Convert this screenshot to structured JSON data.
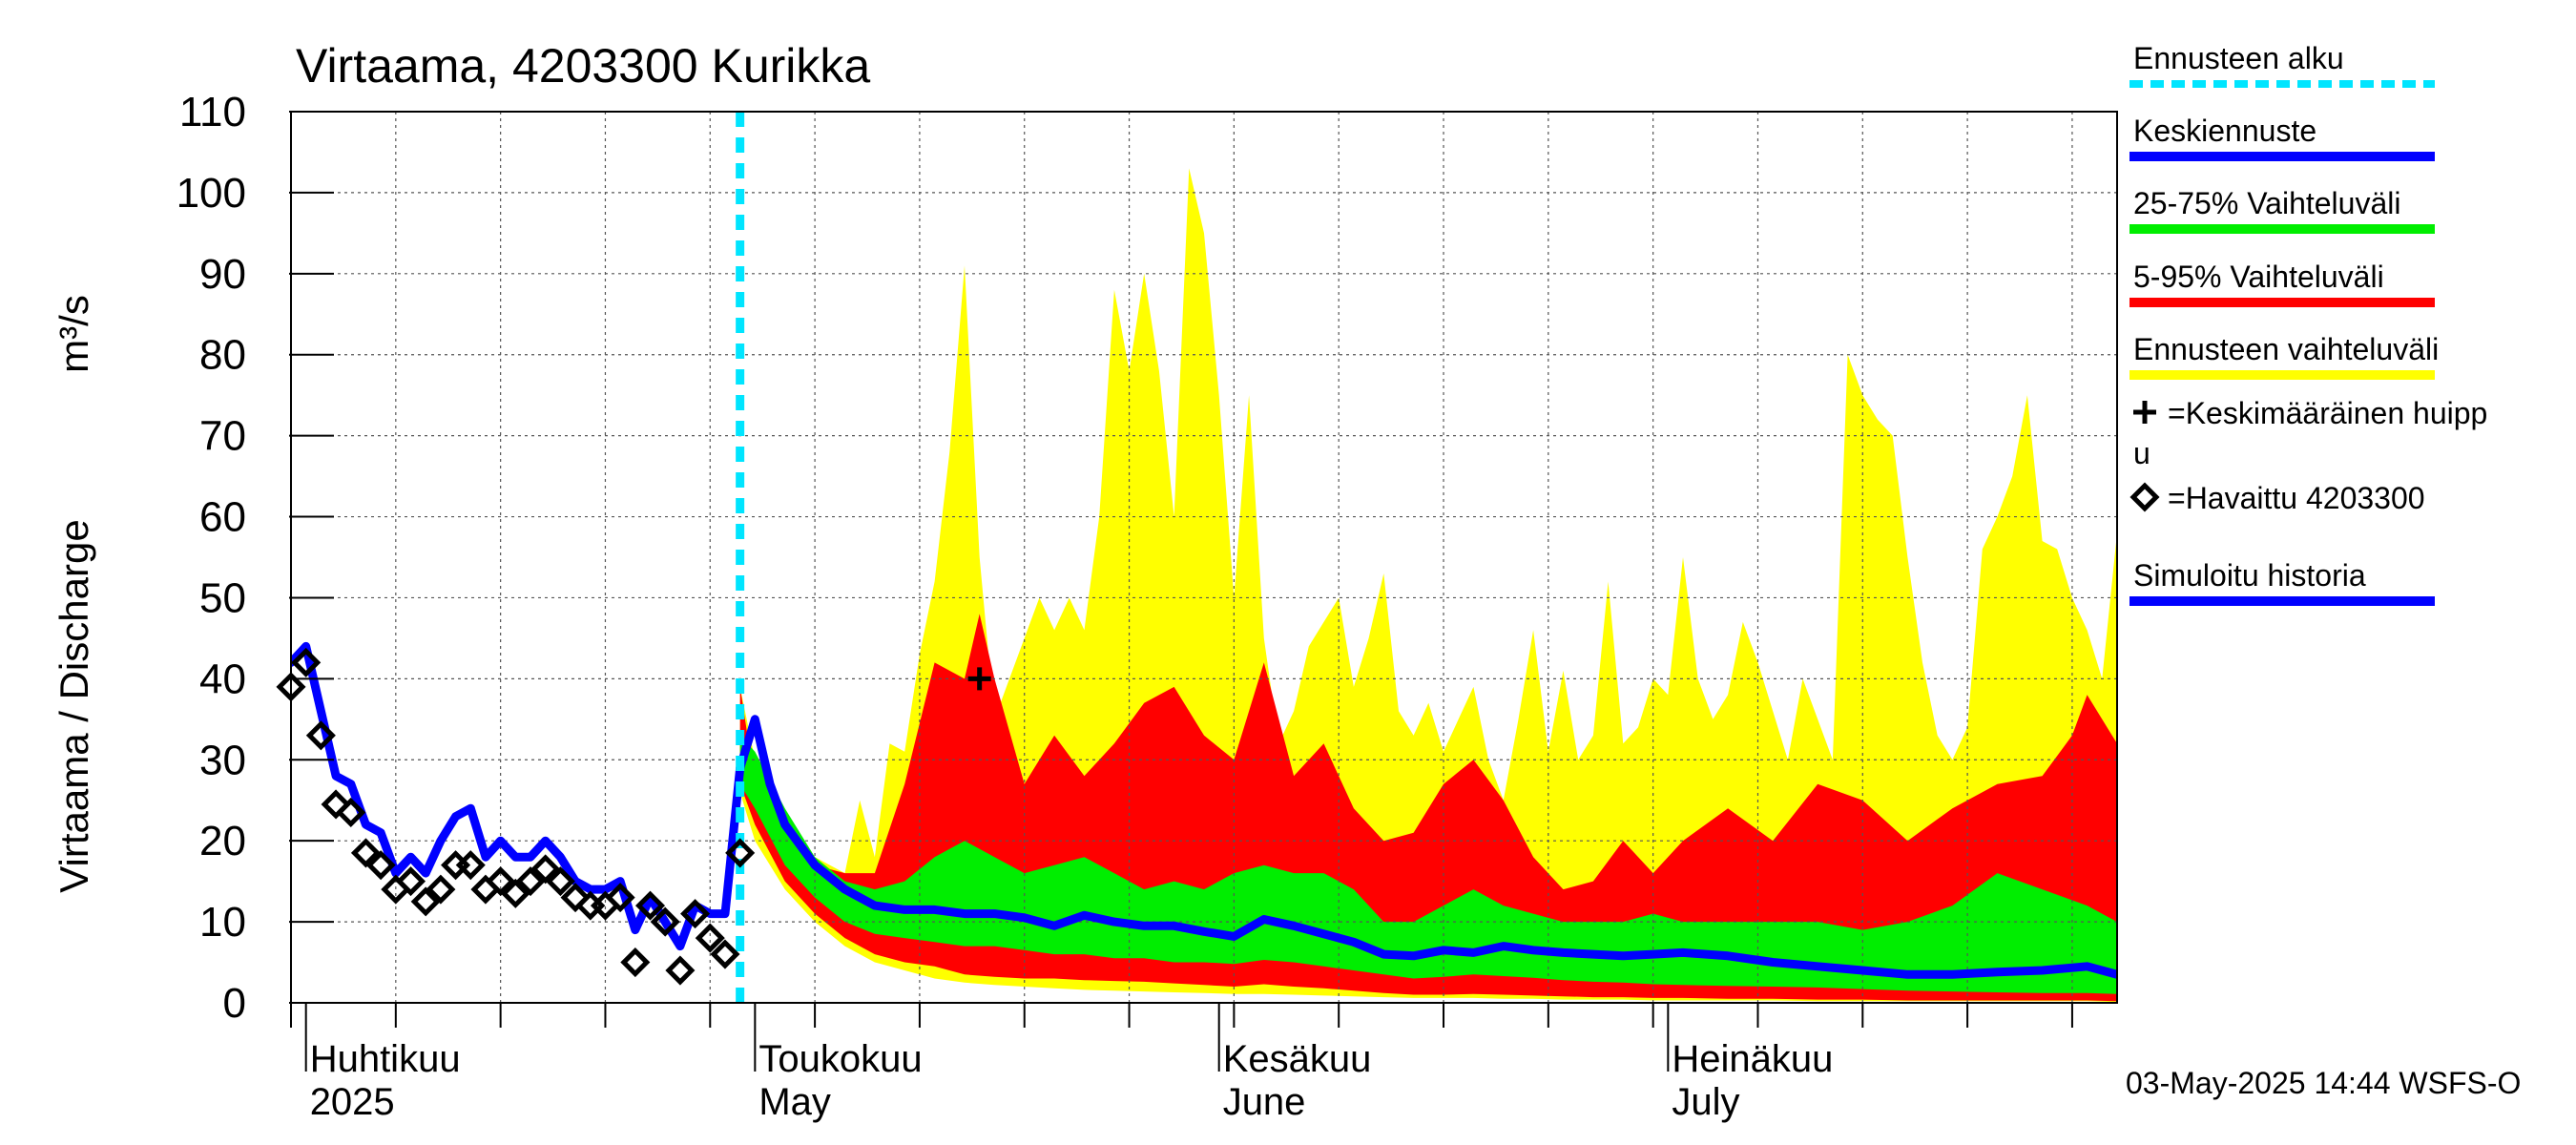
{
  "chart_data": {
    "type": "area",
    "title": "Virtaama, 4203300 Kurikka",
    "ylabel": "Virtaama / Discharge",
    "yunit": "m³/s",
    "ylim": [
      0,
      110
    ],
    "yticks": [
      0,
      10,
      20,
      30,
      40,
      50,
      60,
      70,
      80,
      90,
      100,
      110
    ],
    "xlim": [
      "2025-03-31",
      "2025-07-31"
    ],
    "months": [
      {
        "fi": "Huhtikuu",
        "en": "2025",
        "start": "2025-04-01"
      },
      {
        "fi": "Toukokuu",
        "en": "May",
        "start": "2025-05-01"
      },
      {
        "fi": "Kesäkuu",
        "en": "June",
        "start": "2025-06-01"
      },
      {
        "fi": "Heinäkuu",
        "en": "July",
        "start": "2025-07-01"
      }
    ],
    "forecast_start": "2025-04-30",
    "legend_placement": "right",
    "legend": [
      {
        "label": "Ennusteen alku",
        "color": "#00e5ff",
        "style": "dashed"
      },
      {
        "label": "Keskiennuste",
        "color": "#0000ff",
        "style": "line"
      },
      {
        "label": "25-75% Vaihteluväli",
        "color": "#00ee00",
        "style": "line"
      },
      {
        "label": "5-95% Vaihteluväli",
        "color": "#ff0000",
        "style": "line"
      },
      {
        "label": "Ennusteen vaihteluväli",
        "color": "#ffff00",
        "style": "line"
      },
      {
        "label": "=Keskimääräinen huipp",
        "label2": "u",
        "color": "#000000",
        "style": "plus"
      },
      {
        "label": "=Havaittu 4203300",
        "color": "#000000",
        "style": "diamond"
      },
      {
        "label": "Simuloitu historia",
        "color": "#0000ff",
        "style": "line"
      }
    ],
    "footer": "03-May-2025 14:44 WSFS-O",
    "colors": {
      "range_full": "#ffff00",
      "range_5_95": "#ff0000",
      "range_25_75": "#00ee00",
      "median": "#0000ff",
      "forecast_start": "#00e5ff",
      "grid": "#555555"
    },
    "series": [
      {
        "name": "Simuloitu historia",
        "x": [
          "2025-03-31",
          "2025-04-01",
          "2025-04-02",
          "2025-04-03",
          "2025-04-04",
          "2025-04-05",
          "2025-04-06",
          "2025-04-07",
          "2025-04-08",
          "2025-04-09",
          "2025-04-10",
          "2025-04-11",
          "2025-04-12",
          "2025-04-13",
          "2025-04-14",
          "2025-04-15",
          "2025-04-16",
          "2025-04-17",
          "2025-04-18",
          "2025-04-19",
          "2025-04-20",
          "2025-04-21",
          "2025-04-22",
          "2025-04-23",
          "2025-04-24",
          "2025-04-25",
          "2025-04-26",
          "2025-04-27",
          "2025-04-28",
          "2025-04-29",
          "2025-04-30"
        ],
        "values": [
          42,
          44,
          36,
          28,
          27,
          22,
          21,
          16,
          18,
          16,
          20,
          23,
          24,
          18,
          20,
          18,
          18,
          20,
          18,
          15,
          14,
          14,
          15,
          9,
          13,
          10,
          7,
          12,
          11,
          11,
          29
        ]
      },
      {
        "name": "Keskiennuste",
        "x": [
          "2025-04-30",
          "2025-05-01",
          "2025-05-02",
          "2025-05-03",
          "2025-05-05",
          "2025-05-07",
          "2025-05-09",
          "2025-05-11",
          "2025-05-13",
          "2025-05-15",
          "2025-05-17",
          "2025-05-19",
          "2025-05-21",
          "2025-05-23",
          "2025-05-25",
          "2025-05-27",
          "2025-05-29",
          "2025-05-31",
          "2025-06-02",
          "2025-06-04",
          "2025-06-06",
          "2025-06-08",
          "2025-06-10",
          "2025-06-12",
          "2025-06-14",
          "2025-06-16",
          "2025-06-18",
          "2025-06-20",
          "2025-06-22",
          "2025-06-24",
          "2025-06-26",
          "2025-06-28",
          "2025-06-30",
          "2025-07-02",
          "2025-07-05",
          "2025-07-08",
          "2025-07-11",
          "2025-07-14",
          "2025-07-17",
          "2025-07-20",
          "2025-07-23",
          "2025-07-26",
          "2025-07-29",
          "2025-07-31"
        ],
        "values": [
          29,
          35,
          27,
          22,
          17,
          14,
          12,
          11.5,
          11.5,
          11,
          11,
          10.5,
          9.5,
          10.8,
          10,
          9.5,
          9.5,
          8.8,
          8.2,
          10.3,
          9.5,
          8.5,
          7.5,
          6,
          5.8,
          6.5,
          6.2,
          7,
          6.5,
          6.2,
          6,
          5.8,
          6,
          6.2,
          5.8,
          5,
          4.5,
          4,
          3.5,
          3.5,
          3.8,
          4,
          4.5,
          3.5
        ]
      },
      {
        "name": "Ennusteen vaihteluväli max",
        "x": [
          "2025-04-30",
          "2025-05-01",
          "2025-05-03",
          "2025-05-05",
          "2025-05-07",
          "2025-05-08",
          "2025-05-09",
          "2025-05-10",
          "2025-05-11",
          "2025-05-12",
          "2025-05-13",
          "2025-05-14",
          "2025-05-15",
          "2025-05-16",
          "2025-05-17",
          "2025-05-18",
          "2025-05-19",
          "2025-05-20",
          "2025-05-21",
          "2025-05-22",
          "2025-05-23",
          "2025-05-24",
          "2025-05-25",
          "2025-05-26",
          "2025-05-27",
          "2025-05-28",
          "2025-05-29",
          "2025-05-30",
          "2025-05-31",
          "2025-06-01",
          "2025-06-02",
          "2025-06-03",
          "2025-06-04",
          "2025-06-05",
          "2025-06-06",
          "2025-06-07",
          "2025-06-08",
          "2025-06-09",
          "2025-06-10",
          "2025-06-11",
          "2025-06-12",
          "2025-06-13",
          "2025-06-14",
          "2025-06-15",
          "2025-06-16",
          "2025-06-17",
          "2025-06-18",
          "2025-06-19",
          "2025-06-20",
          "2025-06-21",
          "2025-06-22",
          "2025-06-23",
          "2025-06-24",
          "2025-06-25",
          "2025-06-26",
          "2025-06-27",
          "2025-06-28",
          "2025-06-29",
          "2025-06-30",
          "2025-07-01",
          "2025-07-02",
          "2025-07-03",
          "2025-07-04",
          "2025-07-05",
          "2025-07-06",
          "2025-07-07",
          "2025-07-08",
          "2025-07-09",
          "2025-07-10",
          "2025-07-11",
          "2025-07-12",
          "2025-07-13",
          "2025-07-14",
          "2025-07-15",
          "2025-07-16",
          "2025-07-17",
          "2025-07-18",
          "2025-07-19",
          "2025-07-20",
          "2025-07-21",
          "2025-07-22",
          "2025-07-23",
          "2025-07-24",
          "2025-07-25",
          "2025-07-26",
          "2025-07-27",
          "2025-07-28",
          "2025-07-29",
          "2025-07-30",
          "2025-07-31"
        ],
        "values": [
          39,
          30,
          22,
          18,
          16,
          25,
          18,
          32,
          31,
          43,
          52,
          68,
          91,
          55,
          35,
          40,
          45,
          50,
          46,
          50,
          46,
          60,
          88,
          78,
          90,
          78,
          60,
          103,
          95,
          75,
          50,
          75,
          45,
          32,
          36,
          44,
          47,
          50,
          39,
          45,
          53,
          36,
          33,
          37,
          31,
          35,
          39,
          30,
          25,
          35,
          46,
          31,
          41,
          30,
          33,
          52,
          32,
          34,
          40,
          38,
          55,
          40,
          35,
          38,
          47,
          42,
          36,
          30,
          40,
          35,
          30,
          80,
          75,
          72,
          70,
          55,
          42,
          33,
          30,
          34,
          56,
          60,
          65,
          75,
          57,
          56,
          50,
          46,
          40,
          58
        ]
      },
      {
        "name": "5-95% Vaihteluväli max",
        "x": [
          "2025-04-30",
          "2025-05-01",
          "2025-05-03",
          "2025-05-05",
          "2025-05-07",
          "2025-05-09",
          "2025-05-11",
          "2025-05-13",
          "2025-05-15",
          "2025-05-16",
          "2025-05-17",
          "2025-05-19",
          "2025-05-21",
          "2025-05-23",
          "2025-05-25",
          "2025-05-27",
          "2025-05-29",
          "2025-05-31",
          "2025-06-02",
          "2025-06-04",
          "2025-06-06",
          "2025-06-08",
          "2025-06-10",
          "2025-06-12",
          "2025-06-14",
          "2025-06-16",
          "2025-06-18",
          "2025-06-20",
          "2025-06-22",
          "2025-06-24",
          "2025-06-26",
          "2025-06-28",
          "2025-06-30",
          "2025-07-02",
          "2025-07-05",
          "2025-07-08",
          "2025-07-11",
          "2025-07-14",
          "2025-07-17",
          "2025-07-20",
          "2025-07-23",
          "2025-07-26",
          "2025-07-28",
          "2025-07-29",
          "2025-07-31"
        ],
        "values": [
          39,
          27,
          20,
          17,
          16,
          16,
          27,
          42,
          40,
          48,
          40,
          27,
          33,
          28,
          32,
          37,
          39,
          33,
          30,
          42,
          28,
          32,
          24,
          20,
          21,
          27,
          30,
          25,
          18,
          14,
          15,
          20,
          16,
          20,
          24,
          20,
          27,
          25,
          20,
          24,
          27,
          28,
          33,
          38,
          32
        ]
      },
      {
        "name": "25-75% Vaihteluväli max",
        "x": [
          "2025-04-30",
          "2025-05-01",
          "2025-05-03",
          "2025-05-05",
          "2025-05-07",
          "2025-05-09",
          "2025-05-11",
          "2025-05-13",
          "2025-05-15",
          "2025-05-17",
          "2025-05-19",
          "2025-05-21",
          "2025-05-23",
          "2025-05-25",
          "2025-05-27",
          "2025-05-29",
          "2025-05-31",
          "2025-06-02",
          "2025-06-04",
          "2025-06-06",
          "2025-06-08",
          "2025-06-10",
          "2025-06-12",
          "2025-06-14",
          "2025-06-16",
          "2025-06-18",
          "2025-06-20",
          "2025-06-22",
          "2025-06-24",
          "2025-06-26",
          "2025-06-28",
          "2025-06-30",
          "2025-07-02",
          "2025-07-05",
          "2025-07-08",
          "2025-07-11",
          "2025-07-14",
          "2025-07-17",
          "2025-07-20",
          "2025-07-23",
          "2025-07-26",
          "2025-07-29",
          "2025-07-31"
        ],
        "values": [
          33,
          31,
          24,
          18,
          15,
          14,
          15,
          18,
          20,
          18,
          16,
          17,
          18,
          16,
          14,
          15,
          14,
          16,
          17,
          16,
          16,
          14,
          10,
          10,
          12,
          14,
          12,
          11,
          10,
          10,
          10,
          11,
          10,
          10,
          10,
          10,
          9,
          10,
          12,
          16,
          14,
          12,
          10
        ]
      },
      {
        "name": "25-75% Vaihteluväli min",
        "x": [
          "2025-04-30",
          "2025-05-01",
          "2025-05-03",
          "2025-05-05",
          "2025-05-07",
          "2025-05-09",
          "2025-05-11",
          "2025-05-13",
          "2025-05-15",
          "2025-05-17",
          "2025-05-19",
          "2025-05-21",
          "2025-05-23",
          "2025-05-25",
          "2025-05-27",
          "2025-05-29",
          "2025-05-31",
          "2025-06-02",
          "2025-06-04",
          "2025-06-06",
          "2025-06-08",
          "2025-06-10",
          "2025-06-12",
          "2025-06-14",
          "2025-06-16",
          "2025-06-18",
          "2025-06-20",
          "2025-06-22",
          "2025-06-24",
          "2025-06-26",
          "2025-06-28",
          "2025-06-30",
          "2025-07-02",
          "2025-07-05",
          "2025-07-08",
          "2025-07-11",
          "2025-07-14",
          "2025-07-17",
          "2025-07-20",
          "2025-07-23",
          "2025-07-26",
          "2025-07-29",
          "2025-07-31"
        ],
        "values": [
          27,
          24,
          17,
          13,
          10,
          8.5,
          8,
          7.5,
          7,
          7,
          6.5,
          6,
          6,
          5.5,
          5.5,
          5,
          5,
          4.8,
          5.3,
          5,
          4.5,
          4,
          3.5,
          3,
          3.2,
          3.5,
          3.3,
          3.1,
          2.8,
          2.6,
          2.5,
          2.3,
          2.2,
          2.1,
          2,
          1.9,
          1.7,
          1.5,
          1.4,
          1.3,
          1.2,
          1.2,
          1.1
        ]
      },
      {
        "name": "5-95% Vaihteluväli min",
        "x": [
          "2025-04-30",
          "2025-05-01",
          "2025-05-03",
          "2025-05-05",
          "2025-05-07",
          "2025-05-09",
          "2025-05-11",
          "2025-05-13",
          "2025-05-15",
          "2025-05-17",
          "2025-05-19",
          "2025-05-21",
          "2025-05-23",
          "2025-05-25",
          "2025-05-27",
          "2025-05-29",
          "2025-05-31",
          "2025-06-02",
          "2025-06-04",
          "2025-06-06",
          "2025-06-08",
          "2025-06-10",
          "2025-06-12",
          "2025-06-14",
          "2025-06-16",
          "2025-06-18",
          "2025-06-20",
          "2025-06-22",
          "2025-06-24",
          "2025-06-26",
          "2025-06-28",
          "2025-06-30",
          "2025-07-02",
          "2025-07-05",
          "2025-07-08",
          "2025-07-11",
          "2025-07-14",
          "2025-07-17",
          "2025-07-20",
          "2025-07-23",
          "2025-07-26",
          "2025-07-29",
          "2025-07-31"
        ],
        "values": [
          27,
          22,
          15,
          11,
          8,
          6,
          5,
          4.5,
          3.5,
          3.2,
          3,
          3,
          2.8,
          2.7,
          2.6,
          2.4,
          2.2,
          2,
          2.3,
          2,
          1.8,
          1.5,
          1.2,
          1,
          1,
          1.1,
          1,
          0.9,
          0.8,
          0.7,
          0.7,
          0.6,
          0.6,
          0.5,
          0.5,
          0.4,
          0.4,
          0.3,
          0.3,
          0.3,
          0.3,
          0.3,
          0.2
        ]
      },
      {
        "name": "Ennusteen vaihteluväli min",
        "x": [
          "2025-04-30",
          "2025-05-01",
          "2025-05-03",
          "2025-05-05",
          "2025-05-07",
          "2025-05-09",
          "2025-05-11",
          "2025-05-13",
          "2025-05-15",
          "2025-05-17",
          "2025-05-19",
          "2025-05-21",
          "2025-05-23",
          "2025-05-25",
          "2025-05-27",
          "2025-05-29",
          "2025-05-31",
          "2025-06-02",
          "2025-06-04",
          "2025-06-06",
          "2025-06-08",
          "2025-06-10",
          "2025-06-12",
          "2025-06-14",
          "2025-06-16",
          "2025-06-18",
          "2025-06-20",
          "2025-06-22",
          "2025-06-24",
          "2025-06-26",
          "2025-06-28",
          "2025-06-30",
          "2025-07-02",
          "2025-07-05",
          "2025-07-08",
          "2025-07-11",
          "2025-07-14",
          "2025-07-17",
          "2025-07-20",
          "2025-07-23",
          "2025-07-26",
          "2025-07-29",
          "2025-07-31"
        ],
        "values": [
          26,
          20,
          14,
          10,
          7,
          5,
          4,
          3,
          2.5,
          2.2,
          2,
          1.8,
          1.6,
          1.5,
          1.4,
          1.3,
          1.2,
          1.1,
          1.1,
          1,
          0.9,
          0.8,
          0.7,
          0.6,
          0.6,
          0.6,
          0.5,
          0.5,
          0.4,
          0.4,
          0.4,
          0.3,
          0.3,
          0.3,
          0.3,
          0.2,
          0.2,
          0.2,
          0.2,
          0.2,
          0.2,
          0.2,
          0.1
        ]
      },
      {
        "name": "Havaittu 4203300",
        "x": [
          "2025-03-31",
          "2025-04-01",
          "2025-04-02",
          "2025-04-03",
          "2025-04-04",
          "2025-04-05",
          "2025-04-06",
          "2025-04-07",
          "2025-04-08",
          "2025-04-09",
          "2025-04-10",
          "2025-04-11",
          "2025-04-12",
          "2025-04-13",
          "2025-04-14",
          "2025-04-15",
          "2025-04-16",
          "2025-04-17",
          "2025-04-18",
          "2025-04-19",
          "2025-04-20",
          "2025-04-21",
          "2025-04-22",
          "2025-04-23",
          "2025-04-24",
          "2025-04-25",
          "2025-04-26",
          "2025-04-27",
          "2025-04-28",
          "2025-04-29",
          "2025-04-30"
        ],
        "values": [
          39,
          42,
          33,
          24.5,
          23.5,
          18.5,
          17,
          14,
          15,
          12.5,
          14,
          17,
          17,
          14,
          15,
          13.5,
          15,
          16.5,
          15,
          13,
          12,
          12,
          13,
          5,
          12,
          10,
          4,
          11,
          8,
          6,
          18.5
        ]
      },
      {
        "name": "Keskimääräinen huippu",
        "x": [
          "2025-05-16"
        ],
        "values": [
          40
        ]
      }
    ]
  }
}
